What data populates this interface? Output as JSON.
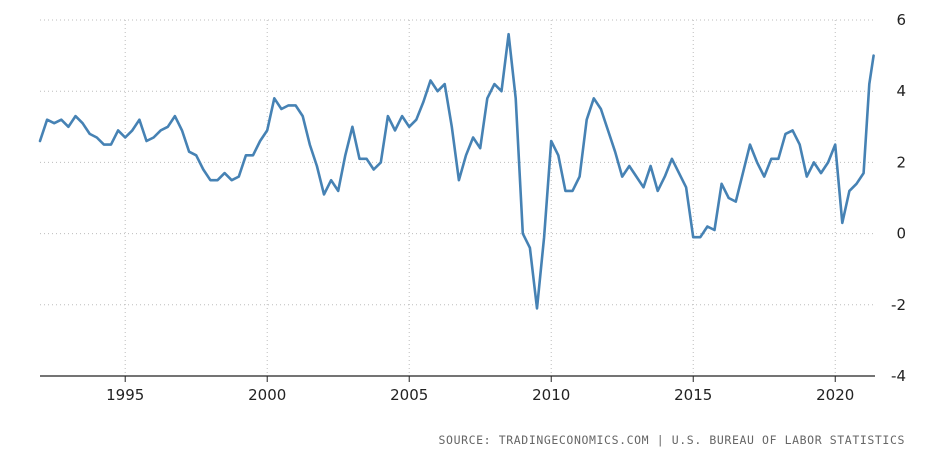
{
  "chart_data": {
    "type": "line",
    "title": "",
    "xlabel": "",
    "ylabel": "",
    "xlim": [
      1992.0,
      2021.4
    ],
    "ylim": [
      -4,
      6
    ],
    "x_ticks": [
      1995,
      2000,
      2005,
      2010,
      2015,
      2020
    ],
    "x_tick_labels": [
      "1995",
      "2000",
      "2005",
      "2010",
      "2015",
      "2020"
    ],
    "y_ticks": [
      6,
      4,
      2,
      0,
      -2,
      -4
    ],
    "y_tick_labels": [
      "6",
      "4",
      "2",
      "0",
      "-2",
      "-4"
    ],
    "grid": {
      "x": true,
      "y": true,
      "style": "dotted"
    },
    "legend": "none",
    "line_color": "#4682b4",
    "series": [
      {
        "x": [
          1992.0,
          1992.25,
          1992.5,
          1992.75,
          1993.0,
          1993.25,
          1993.5,
          1993.75,
          1994.0,
          1994.25,
          1994.5,
          1994.75,
          1995.0,
          1995.25,
          1995.5,
          1995.75,
          1996.0,
          1996.25,
          1996.5,
          1996.75,
          1997.0,
          1997.25,
          1997.5,
          1997.75,
          1998.0,
          1998.25,
          1998.5,
          1998.75,
          1999.0,
          1999.25,
          1999.5,
          1999.75,
          2000.0,
          2000.25,
          2000.5,
          2000.75,
          2001.0,
          2001.25,
          2001.5,
          2001.75,
          2002.0,
          2002.25,
          2002.5,
          2002.75,
          2003.0,
          2003.25,
          2003.5,
          2003.75,
          2004.0,
          2004.25,
          2004.5,
          2004.75,
          2005.0,
          2005.25,
          2005.5,
          2005.75,
          2006.0,
          2006.25,
          2006.5,
          2006.75,
          2007.0,
          2007.25,
          2007.5,
          2007.75,
          2008.0,
          2008.25,
          2008.5,
          2008.75,
          2009.0,
          2009.25,
          2009.5,
          2009.75,
          2010.0,
          2010.25,
          2010.5,
          2010.75,
          2011.0,
          2011.25,
          2011.5,
          2011.75,
          2012.0,
          2012.25,
          2012.5,
          2012.75,
          2013.0,
          2013.25,
          2013.5,
          2013.75,
          2014.0,
          2014.25,
          2014.5,
          2014.75,
          2015.0,
          2015.25,
          2015.5,
          2015.75,
          2016.0,
          2016.25,
          2016.5,
          2016.75,
          2017.0,
          2017.25,
          2017.5,
          2017.75,
          2018.0,
          2018.25,
          2018.5,
          2018.75,
          2019.0,
          2019.25,
          2019.5,
          2019.75,
          2020.0,
          2020.25,
          2020.5,
          2020.75,
          2021.0,
          2021.2,
          2021.35
        ],
        "y": [
          2.6,
          3.2,
          3.1,
          3.2,
          3.0,
          3.3,
          3.1,
          2.8,
          2.7,
          2.5,
          2.5,
          2.9,
          2.7,
          2.9,
          3.2,
          2.6,
          2.7,
          2.9,
          3.0,
          3.3,
          2.9,
          2.3,
          2.2,
          1.8,
          1.5,
          1.5,
          1.7,
          1.5,
          1.6,
          2.2,
          2.2,
          2.6,
          2.9,
          3.8,
          3.5,
          3.6,
          3.6,
          3.3,
          2.5,
          1.9,
          1.1,
          1.5,
          1.2,
          2.2,
          3.0,
          2.1,
          2.1,
          1.8,
          2.0,
          3.3,
          2.9,
          3.3,
          3.0,
          3.2,
          3.7,
          4.3,
          4.0,
          4.2,
          3.0,
          1.5,
          2.2,
          2.7,
          2.4,
          3.8,
          4.2,
          4.0,
          5.6,
          3.8,
          0.0,
          -0.4,
          -2.1,
          -0.1,
          2.6,
          2.2,
          1.2,
          1.2,
          1.6,
          3.2,
          3.8,
          3.5,
          2.9,
          2.3,
          1.6,
          1.9,
          1.6,
          1.3,
          1.9,
          1.2,
          1.6,
          2.1,
          1.7,
          1.3,
          -0.1,
          -0.1,
          0.2,
          0.1,
          1.4,
          1.0,
          0.9,
          1.7,
          2.5,
          2.0,
          1.6,
          2.1,
          2.1,
          2.8,
          2.9,
          2.5,
          1.6,
          2.0,
          1.7,
          2.0,
          2.5,
          0.3,
          1.2,
          1.4,
          1.7,
          4.2,
          5.0
        ]
      }
    ],
    "source_text": "SOURCE: TRADINGECONOMICS.COM | U.S. BUREAU OF LABOR STATISTICS"
  }
}
